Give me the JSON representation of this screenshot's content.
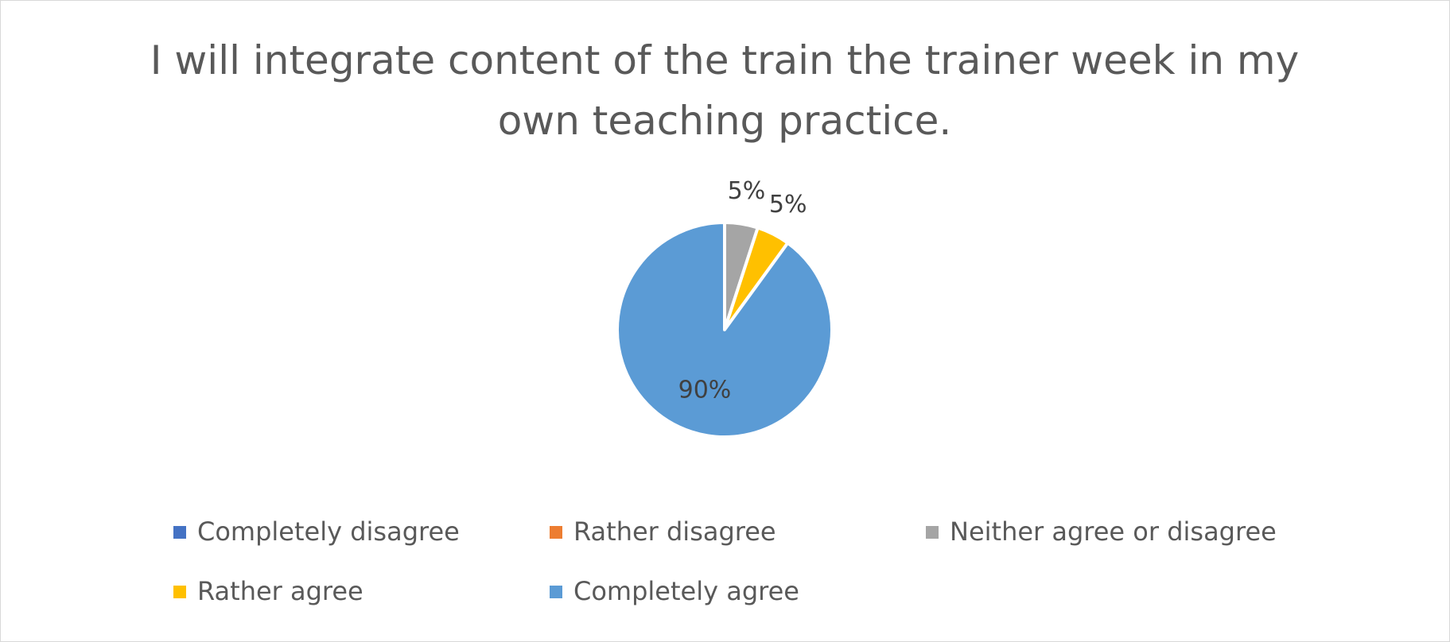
{
  "chart_data": {
    "type": "pie",
    "title": "I will integrate content of the train the trainer week in my own teaching practice.",
    "categories": [
      "Completely disagree",
      "Rather disagree",
      "Neither agree or disagree",
      "Rather agree",
      "Completely agree"
    ],
    "values": [
      0,
      0,
      5,
      5,
      90
    ],
    "value_labels": [
      null,
      null,
      "5%",
      "5%",
      "90%"
    ],
    "colors": [
      "#4472c4",
      "#ed7d31",
      "#a5a5a5",
      "#ffc000",
      "#5b9bd5"
    ],
    "legend": "bottom"
  }
}
